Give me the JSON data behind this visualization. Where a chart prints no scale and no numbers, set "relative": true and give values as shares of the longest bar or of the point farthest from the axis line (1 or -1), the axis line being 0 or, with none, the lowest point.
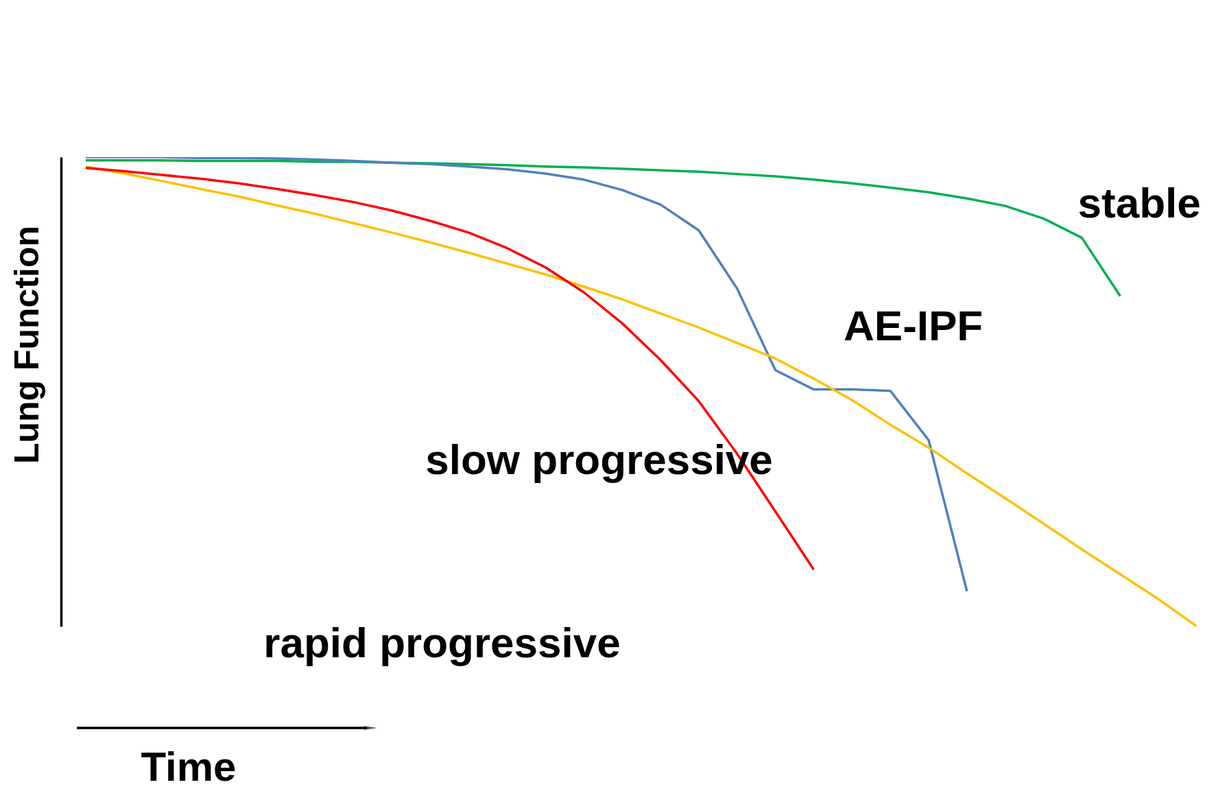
{
  "chart_data": {
    "type": "line",
    "relative": true,
    "xlabel": "Time",
    "ylabel": "Lung Function",
    "grid": false,
    "marker": "none",
    "line_style": "solid",
    "annotations": [
      "stable",
      "AE-IPF",
      "slow progressive",
      "rapid progressive"
    ],
    "categories": [
      null,
      null,
      null,
      null,
      null,
      null,
      null,
      null,
      null,
      null,
      null,
      null,
      null,
      null,
      null,
      null,
      null,
      null,
      null,
      null,
      null,
      null,
      null,
      null,
      null,
      null,
      null,
      null,
      null,
      null
    ],
    "series": [
      {
        "color": "#00b050",
        "values": [
          0.993,
          0.993,
          0.993,
          0.992,
          0.992,
          0.992,
          0.99,
          0.99,
          0.988,
          0.987,
          0.985,
          0.983,
          0.98,
          0.978,
          0.975,
          0.972,
          0.969,
          0.964,
          0.959,
          0.952,
          0.944,
          0.935,
          0.925,
          0.912,
          0.896,
          0.869,
          0.828,
          0.704,
          null,
          null
        ]
      },
      {
        "color": "#4f81bd",
        "values": [
          1.0,
          1.0,
          1.0,
          0.998,
          0.998,
          0.997,
          0.995,
          0.992,
          0.988,
          0.985,
          0.98,
          0.974,
          0.965,
          0.952,
          0.93,
          0.899,
          0.844,
          0.72,
          0.546,
          0.505,
          0.505,
          0.502,
          0.397,
          0.075,
          null,
          null,
          null,
          null,
          null,
          null
        ]
      },
      {
        "color": "#ffc000",
        "values": [
          0.98,
          0.965,
          0.949,
          0.932,
          0.916,
          0.897,
          0.879,
          0.859,
          0.839,
          0.818,
          0.796,
          0.773,
          0.75,
          0.724,
          0.697,
          0.667,
          0.637,
          0.604,
          0.571,
          0.528,
          0.482,
          0.43,
          0.381,
          0.326,
          0.273,
          0.219,
          0.164,
          0.111,
          0.058,
          0.0
        ]
      },
      {
        "color": "#ff0000",
        "values": [
          0.977,
          0.97,
          0.962,
          0.954,
          0.944,
          0.932,
          0.919,
          0.904,
          0.886,
          0.864,
          0.839,
          0.806,
          0.765,
          0.712,
          0.646,
          0.568,
          0.48,
          0.368,
          0.245,
          0.121,
          null,
          null,
          null,
          null,
          null,
          null,
          null,
          null,
          null,
          null
        ]
      }
    ]
  }
}
